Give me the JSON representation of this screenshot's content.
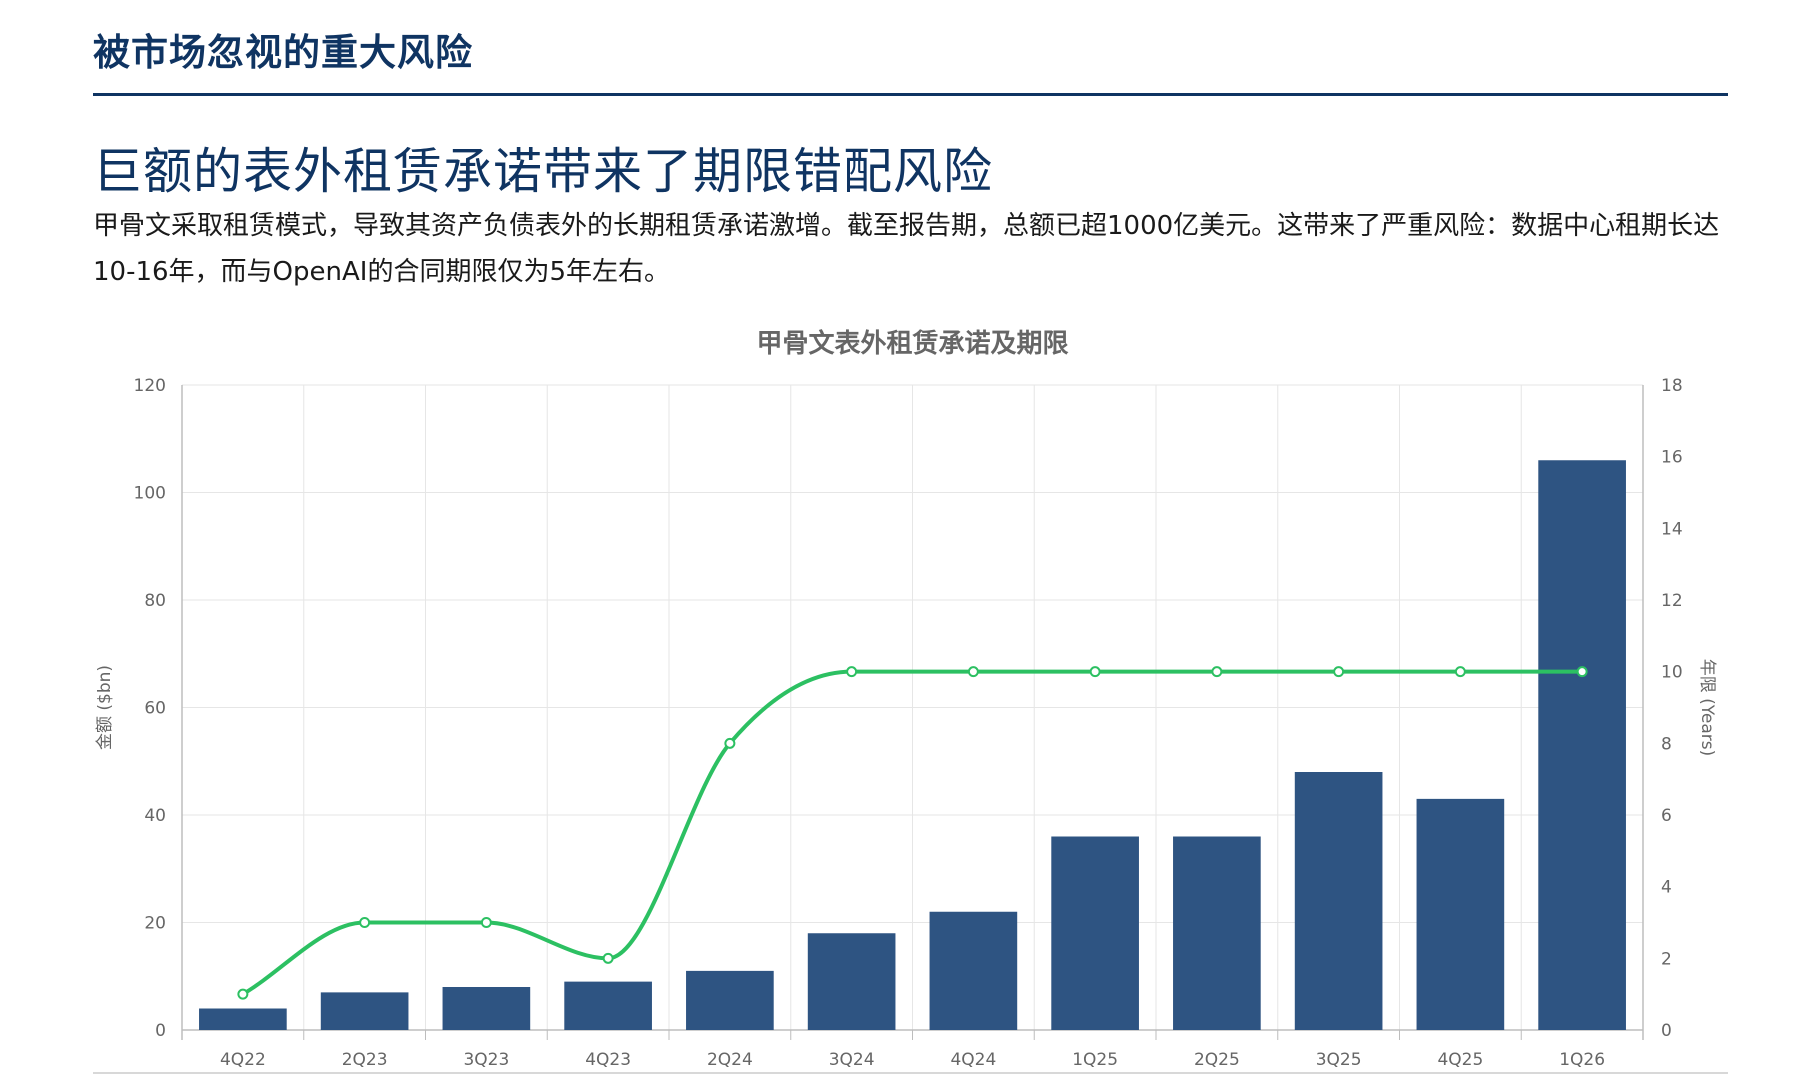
{
  "header": {
    "section_title": "被市场忽视的重大风险",
    "headline": "巨额的表外租赁承诺带来了期限错配风险",
    "description": "甲骨文采取租赁模式，导致其资产负债表外的长期租赁承诺激增。截至报告期，总额已超1000亿美元。这带来了严重风险：数据中心租期长达10-16年，而与OpenAI的合同期限仅为5年左右。"
  },
  "colors": {
    "title": "#0f3462",
    "bar": "#2e5482",
    "line": "#2cc062",
    "grid": "#e6e6e6",
    "axis_text": "#666666"
  },
  "chart_data": {
    "type": "bar",
    "title": "甲骨文表外租赁承诺及期限",
    "categories": [
      "4Q22",
      "2Q23",
      "3Q23",
      "4Q23",
      "2Q24",
      "3Q24",
      "4Q24",
      "1Q25",
      "2Q25",
      "3Q25",
      "4Q25",
      "1Q26"
    ],
    "series": [
      {
        "type": "bar",
        "axis": "left",
        "values": [
          4,
          7,
          8,
          9,
          11,
          18,
          22,
          36,
          36,
          48,
          43,
          106
        ]
      },
      {
        "type": "line",
        "axis": "right",
        "smooth": true,
        "values": [
          1,
          3,
          3,
          2,
          8,
          10,
          10,
          10,
          10,
          10,
          10,
          10
        ]
      }
    ],
    "y_left": {
      "label": "金额 ($bn)",
      "range": [
        0,
        120
      ],
      "ticks": [
        0,
        20,
        40,
        60,
        80,
        100,
        120
      ]
    },
    "y_right": {
      "label": "年限 (Years)",
      "range": [
        0,
        18
      ],
      "ticks": [
        0,
        2,
        4,
        6,
        8,
        10,
        12,
        14,
        16,
        18
      ]
    },
    "grid": true,
    "legend": "none"
  }
}
